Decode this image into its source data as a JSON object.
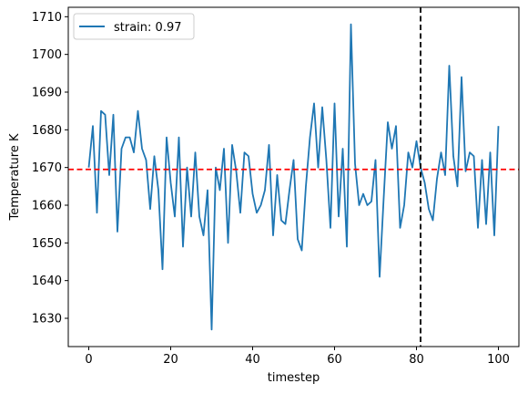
{
  "chart_data": {
    "type": "line",
    "xlabel": "timestep",
    "ylabel": "Temperature K",
    "xlim": [
      -5,
      105
    ],
    "ylim": [
      1622.5,
      1712.5
    ],
    "xticks": [
      0,
      20,
      40,
      60,
      80,
      100
    ],
    "yticks": [
      1630,
      1640,
      1650,
      1660,
      1670,
      1680,
      1690,
      1700,
      1710
    ],
    "legend_position": "top-left",
    "grid": false,
    "series": [
      {
        "name": "strain: 0.97",
        "color": "#1f77b4",
        "x": [
          0,
          1,
          2,
          3,
          4,
          5,
          6,
          7,
          8,
          9,
          10,
          11,
          12,
          13,
          14,
          15,
          16,
          17,
          18,
          19,
          20,
          21,
          22,
          23,
          24,
          25,
          26,
          27,
          28,
          29,
          30,
          31,
          32,
          33,
          34,
          35,
          36,
          37,
          38,
          39,
          40,
          41,
          42,
          43,
          44,
          45,
          46,
          47,
          48,
          49,
          50,
          51,
          52,
          53,
          54,
          55,
          56,
          57,
          58,
          59,
          60,
          61,
          62,
          63,
          64,
          65,
          66,
          67,
          68,
          69,
          70,
          71,
          72,
          73,
          74,
          75,
          76,
          77,
          78,
          79,
          80,
          81,
          82,
          83,
          84,
          85,
          86,
          87,
          88,
          89,
          90,
          91,
          92,
          93,
          94,
          95,
          96,
          97,
          98,
          99,
          100
        ],
        "y": [
          1670,
          1681,
          1658,
          1685,
          1684,
          1668,
          1684,
          1653,
          1675,
          1678,
          1678,
          1674,
          1685,
          1675,
          1672,
          1659,
          1673,
          1664,
          1643,
          1678,
          1666,
          1657,
          1678,
          1649,
          1670,
          1657,
          1674,
          1657,
          1652,
          1664,
          1627,
          1670,
          1664,
          1675,
          1650,
          1676,
          1669,
          1658,
          1674,
          1673,
          1663,
          1658,
          1660,
          1664,
          1676,
          1652,
          1668,
          1656,
          1655,
          1664,
          1672,
          1651,
          1648,
          1665,
          1678,
          1687,
          1670,
          1686,
          1672,
          1654,
          1687,
          1657,
          1675,
          1649,
          1708,
          1671,
          1660,
          1663,
          1660,
          1661,
          1672,
          1641,
          1662,
          1682,
          1675,
          1681,
          1654,
          1660,
          1674,
          1670,
          1677,
          1670,
          1666,
          1659,
          1656,
          1667,
          1674,
          1668,
          1697,
          1673,
          1665,
          1694,
          1669,
          1674,
          1673,
          1654,
          1672,
          1655,
          1674,
          1652,
          1681
        ]
      }
    ],
    "reference_lines": [
      {
        "orientation": "horizontal",
        "value": 1669.5,
        "color": "#ff0000",
        "style": "dashed"
      },
      {
        "orientation": "vertical",
        "value": 81,
        "color": "#000000",
        "style": "dashed"
      }
    ]
  }
}
